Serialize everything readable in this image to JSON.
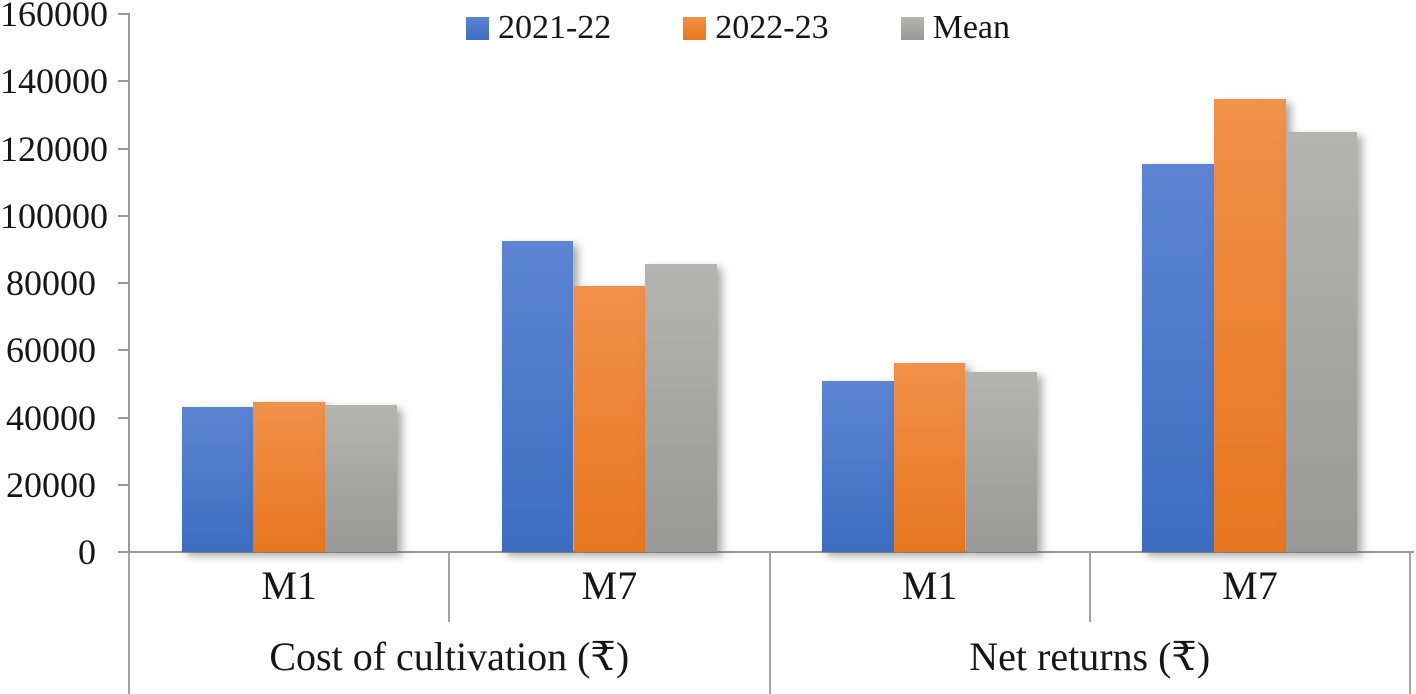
{
  "chart_data": {
    "type": "bar",
    "title": "",
    "legend_position": "top",
    "grid": false,
    "axis_color": "#9a9a9a",
    "ylim": [
      0,
      160000
    ],
    "y_ticks": [
      0,
      20000,
      40000,
      60000,
      80000,
      100000,
      120000,
      140000,
      160000
    ],
    "groups": [
      {
        "group": "Cost of cultivation (₹)",
        "categories": [
          "M1",
          "M7"
        ]
      },
      {
        "group": "Net returns (₹)",
        "categories": [
          "M1",
          "M7"
        ]
      }
    ],
    "legend": [
      {
        "name": "2021-22",
        "color": "#4472c4",
        "color_top": "#5c85d2",
        "color_bottom": "#3d6ec0"
      },
      {
        "name": "2022-23",
        "color": "#ed7d31",
        "color_top": "#f1914b",
        "color_bottom": "#e8761f"
      },
      {
        "name": "Mean",
        "color": "#a5a5a5",
        "color_top": "#b4b4b3",
        "color_bottom": "#999998"
      }
    ],
    "series": [
      {
        "name": "2021-22",
        "values": [
          43000,
          92400,
          51000,
          115300
        ]
      },
      {
        "name": "2022-23",
        "values": [
          44700,
          79000,
          56200,
          134800
        ]
      },
      {
        "name": "Mean",
        "values": [
          43850,
          85700,
          53600,
          125050
        ]
      }
    ]
  }
}
